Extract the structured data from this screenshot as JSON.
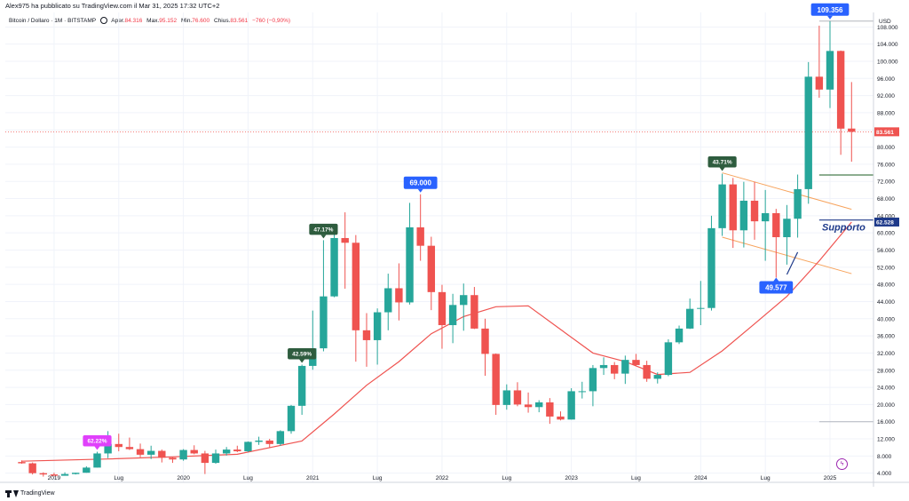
{
  "header": {
    "published_by": "Alex975 ha pubblicato su TradingView.com il Mar 31, 2025 17:32 UTC+2"
  },
  "legend": {
    "symbol": "Bitcoin / Dollaro · 1M · BITSTAMP",
    "open_label": "Aper.",
    "open": "84.316",
    "high_label": "Max.",
    "high": "95.152",
    "low_label": "Min.",
    "low": "76.600",
    "close_label": "Chius.",
    "close": "83.561",
    "change": "−760 (−0,90%)"
  },
  "footer": {
    "brand": "TradingView",
    "logo_icon": "tradingview-logo-icon"
  },
  "colors": {
    "up": "#26a69a",
    "down": "#ef5350",
    "ma": "#ef5350",
    "channel": "#f7a35c",
    "support_line": "#1e3a8a",
    "callout_blue": "#2962ff",
    "callout_green": "#2e5c3e",
    "callout_magenta": "#e040fb",
    "dark_green_line": "#1b5e20"
  },
  "chart_data": {
    "type": "candlestick",
    "currency": "USD",
    "ylim": [
      0,
      112000
    ],
    "yticks": [
      4000,
      8000,
      12000,
      16000,
      20000,
      24000,
      28000,
      32000,
      36000,
      40000,
      44000,
      48000,
      52000,
      56000,
      60000,
      64000,
      68000,
      72000,
      76000,
      80000,
      84000,
      88000,
      92000,
      96000,
      100000,
      104000,
      108000
    ],
    "ytick_labels": [
      "4.000",
      "8.000",
      "12.000",
      "16.000",
      "20.000",
      "24.000",
      "28.000",
      "32.000",
      "36.000",
      "40.000",
      "44.000",
      "48.000",
      "52.000",
      "56.000",
      "60.000",
      "64.000",
      "68.000",
      "72.000",
      "76.000",
      "80.000",
      "84.000",
      "88.000",
      "92.000",
      "96.000",
      "100.000",
      "104.000",
      "108.000"
    ],
    "x_labels": [
      {
        "month": "2019-01",
        "label": "2019"
      },
      {
        "month": "2019-07",
        "label": "Lug"
      },
      {
        "month": "2020-01",
        "label": "2020"
      },
      {
        "month": "2020-07",
        "label": "Lug"
      },
      {
        "month": "2021-01",
        "label": "2021"
      },
      {
        "month": "2021-07",
        "label": "Lug"
      },
      {
        "month": "2022-01",
        "label": "2022"
      },
      {
        "month": "2022-07",
        "label": "Lug"
      },
      {
        "month": "2023-01",
        "label": "2023"
      },
      {
        "month": "2023-07",
        "label": "Lug"
      },
      {
        "month": "2024-01",
        "label": "2024"
      },
      {
        "month": "2024-07",
        "label": "Lug"
      },
      {
        "month": "2025-01",
        "label": "2025"
      }
    ],
    "first_month": "2018-10",
    "candles": [
      {
        "m": "2018-10",
        "o": 6600,
        "h": 7000,
        "l": 6200,
        "c": 6300
      },
      {
        "m": "2018-11",
        "o": 6300,
        "h": 6500,
        "l": 3700,
        "c": 4000
      },
      {
        "m": "2018-12",
        "o": 4000,
        "h": 4200,
        "l": 3200,
        "c": 3700
      },
      {
        "m": "2019-01",
        "o": 3700,
        "h": 4100,
        "l": 3400,
        "c": 3400
      },
      {
        "m": "2019-02",
        "o": 3400,
        "h": 4200,
        "l": 3400,
        "c": 3800
      },
      {
        "m": "2019-03",
        "o": 3800,
        "h": 4100,
        "l": 3700,
        "c": 4100
      },
      {
        "m": "2019-04",
        "o": 4100,
        "h": 5600,
        "l": 4100,
        "c": 5300
      },
      {
        "m": "2019-05",
        "o": 5300,
        "h": 9000,
        "l": 5300,
        "c": 8600
      },
      {
        "m": "2019-06",
        "o": 8600,
        "h": 13800,
        "l": 7500,
        "c": 10800
      },
      {
        "m": "2019-07",
        "o": 10800,
        "h": 13200,
        "l": 9100,
        "c": 10100
      },
      {
        "m": "2019-08",
        "o": 10100,
        "h": 12300,
        "l": 9400,
        "c": 9600
      },
      {
        "m": "2019-09",
        "o": 9600,
        "h": 10900,
        "l": 7700,
        "c": 8300
      },
      {
        "m": "2019-10",
        "o": 8300,
        "h": 10400,
        "l": 7300,
        "c": 9200
      },
      {
        "m": "2019-11",
        "o": 9200,
        "h": 9500,
        "l": 6500,
        "c": 7600
      },
      {
        "m": "2019-12",
        "o": 7600,
        "h": 7700,
        "l": 6400,
        "c": 7200
      },
      {
        "m": "2020-01",
        "o": 7200,
        "h": 9600,
        "l": 6900,
        "c": 9400
      },
      {
        "m": "2020-02",
        "o": 9400,
        "h": 10500,
        "l": 8400,
        "c": 8600
      },
      {
        "m": "2020-03",
        "o": 8600,
        "h": 9200,
        "l": 3800,
        "c": 6400
      },
      {
        "m": "2020-04",
        "o": 6400,
        "h": 9500,
        "l": 6200,
        "c": 8600
      },
      {
        "m": "2020-05",
        "o": 8600,
        "h": 10100,
        "l": 8100,
        "c": 9500
      },
      {
        "m": "2020-06",
        "o": 9500,
        "h": 10400,
        "l": 8900,
        "c": 9100
      },
      {
        "m": "2020-07",
        "o": 9100,
        "h": 11400,
        "l": 8900,
        "c": 11300
      },
      {
        "m": "2020-08",
        "o": 11300,
        "h": 12500,
        "l": 10600,
        "c": 11600
      },
      {
        "m": "2020-09",
        "o": 11600,
        "h": 12000,
        "l": 9900,
        "c": 10800
      },
      {
        "m": "2020-10",
        "o": 10800,
        "h": 14000,
        "l": 10400,
        "c": 13800
      },
      {
        "m": "2020-11",
        "o": 13800,
        "h": 19900,
        "l": 13200,
        "c": 19700
      },
      {
        "m": "2020-12",
        "o": 19700,
        "h": 29300,
        "l": 17600,
        "c": 29000
      },
      {
        "m": "2021-01",
        "o": 29000,
        "h": 41900,
        "l": 28100,
        "c": 33100
      },
      {
        "m": "2021-02",
        "o": 33100,
        "h": 58300,
        "l": 32400,
        "c": 45200
      },
      {
        "m": "2021-03",
        "o": 45200,
        "h": 61800,
        "l": 45000,
        "c": 58800
      },
      {
        "m": "2021-04",
        "o": 58800,
        "h": 64800,
        "l": 47000,
        "c": 57700
      },
      {
        "m": "2021-05",
        "o": 57700,
        "h": 59500,
        "l": 30000,
        "c": 37300
      },
      {
        "m": "2021-06",
        "o": 37300,
        "h": 41300,
        "l": 28800,
        "c": 35000
      },
      {
        "m": "2021-07",
        "o": 35000,
        "h": 42400,
        "l": 29300,
        "c": 41500
      },
      {
        "m": "2021-08",
        "o": 41500,
        "h": 50500,
        "l": 37300,
        "c": 47100
      },
      {
        "m": "2021-09",
        "o": 47100,
        "h": 52900,
        "l": 39600,
        "c": 43800
      },
      {
        "m": "2021-10",
        "o": 43800,
        "h": 67000,
        "l": 43300,
        "c": 61300
      },
      {
        "m": "2021-11",
        "o": 61300,
        "h": 69000,
        "l": 53500,
        "c": 57000
      },
      {
        "m": "2021-12",
        "o": 57000,
        "h": 59100,
        "l": 42000,
        "c": 46200
      },
      {
        "m": "2022-01",
        "o": 46200,
        "h": 47900,
        "l": 33000,
        "c": 38500
      },
      {
        "m": "2022-02",
        "o": 38500,
        "h": 45800,
        "l": 34300,
        "c": 43200
      },
      {
        "m": "2022-03",
        "o": 43200,
        "h": 48200,
        "l": 37200,
        "c": 45500
      },
      {
        "m": "2022-04",
        "o": 45500,
        "h": 47400,
        "l": 37600,
        "c": 37700
      },
      {
        "m": "2022-05",
        "o": 37700,
        "h": 40000,
        "l": 26700,
        "c": 31800
      },
      {
        "m": "2022-06",
        "o": 31800,
        "h": 31900,
        "l": 17600,
        "c": 19900
      },
      {
        "m": "2022-07",
        "o": 19900,
        "h": 24700,
        "l": 18800,
        "c": 23300
      },
      {
        "m": "2022-08",
        "o": 23300,
        "h": 25200,
        "l": 19600,
        "c": 20000
      },
      {
        "m": "2022-09",
        "o": 20000,
        "h": 22800,
        "l": 18100,
        "c": 19400
      },
      {
        "m": "2022-10",
        "o": 19400,
        "h": 21000,
        "l": 18200,
        "c": 20500
      },
      {
        "m": "2022-11",
        "o": 20500,
        "h": 21500,
        "l": 15500,
        "c": 17200
      },
      {
        "m": "2022-12",
        "o": 17200,
        "h": 18400,
        "l": 16300,
        "c": 16500
      },
      {
        "m": "2023-01",
        "o": 16500,
        "h": 23800,
        "l": 16500,
        "c": 23100
      },
      {
        "m": "2023-02",
        "o": 23100,
        "h": 25300,
        "l": 21400,
        "c": 23100
      },
      {
        "m": "2023-03",
        "o": 23100,
        "h": 29200,
        "l": 19600,
        "c": 28500
      },
      {
        "m": "2023-04",
        "o": 28500,
        "h": 31000,
        "l": 26900,
        "c": 29200
      },
      {
        "m": "2023-05",
        "o": 29200,
        "h": 29900,
        "l": 25900,
        "c": 27200
      },
      {
        "m": "2023-06",
        "o": 27200,
        "h": 31400,
        "l": 24800,
        "c": 30400
      },
      {
        "m": "2023-07",
        "o": 30400,
        "h": 31800,
        "l": 28900,
        "c": 29200
      },
      {
        "m": "2023-08",
        "o": 29200,
        "h": 30200,
        "l": 25300,
        "c": 26000
      },
      {
        "m": "2023-09",
        "o": 26000,
        "h": 27500,
        "l": 24900,
        "c": 26900
      },
      {
        "m": "2023-10",
        "o": 26900,
        "h": 35200,
        "l": 26600,
        "c": 34500
      },
      {
        "m": "2023-11",
        "o": 34500,
        "h": 38400,
        "l": 34100,
        "c": 37700
      },
      {
        "m": "2023-12",
        "o": 37700,
        "h": 44700,
        "l": 37600,
        "c": 42300
      },
      {
        "m": "2024-01",
        "o": 42300,
        "h": 48800,
        "l": 38500,
        "c": 42500
      },
      {
        "m": "2024-02",
        "o": 42500,
        "h": 64000,
        "l": 41900,
        "c": 61100
      },
      {
        "m": "2024-03",
        "o": 61100,
        "h": 73800,
        "l": 59300,
        "c": 71300
      },
      {
        "m": "2024-04",
        "o": 71300,
        "h": 72800,
        "l": 56500,
        "c": 60600
      },
      {
        "m": "2024-05",
        "o": 60600,
        "h": 71900,
        "l": 56600,
        "c": 67500
      },
      {
        "m": "2024-06",
        "o": 67500,
        "h": 71900,
        "l": 58400,
        "c": 62700
      },
      {
        "m": "2024-07",
        "o": 62700,
        "h": 70000,
        "l": 53500,
        "c": 64600
      },
      {
        "m": "2024-08",
        "o": 64600,
        "h": 65600,
        "l": 49577,
        "c": 59000
      },
      {
        "m": "2024-09",
        "o": 59000,
        "h": 66500,
        "l": 52600,
        "c": 63300
      },
      {
        "m": "2024-10",
        "o": 63300,
        "h": 73600,
        "l": 58900,
        "c": 70200
      },
      {
        "m": "2024-11",
        "o": 70200,
        "h": 99800,
        "l": 66800,
        "c": 96400
      },
      {
        "m": "2024-12",
        "o": 96400,
        "h": 108300,
        "l": 91500,
        "c": 93400
      },
      {
        "m": "2025-01",
        "o": 93400,
        "h": 109356,
        "l": 89100,
        "c": 102400
      },
      {
        "m": "2025-02",
        "o": 102400,
        "h": 102500,
        "l": 78200,
        "c": 84300
      },
      {
        "m": "2025-03",
        "o": 84316,
        "h": 95152,
        "l": 76600,
        "c": 83561
      }
    ],
    "moving_average": {
      "color_key": "ma",
      "points": [
        {
          "m": "2018-10",
          "v": 6800
        },
        {
          "m": "2019-06",
          "v": 7300
        },
        {
          "m": "2019-12",
          "v": 7800
        },
        {
          "m": "2020-06",
          "v": 8400
        },
        {
          "m": "2020-12",
          "v": 11500
        },
        {
          "m": "2021-03",
          "v": 17800
        },
        {
          "m": "2021-06",
          "v": 24500
        },
        {
          "m": "2021-09",
          "v": 30000
        },
        {
          "m": "2021-12",
          "v": 36500
        },
        {
          "m": "2022-03",
          "v": 40500
        },
        {
          "m": "2022-06",
          "v": 42800
        },
        {
          "m": "2022-09",
          "v": 43000
        },
        {
          "m": "2022-12",
          "v": 37500
        },
        {
          "m": "2023-03",
          "v": 32000
        },
        {
          "m": "2023-06",
          "v": 30000
        },
        {
          "m": "2023-09",
          "v": 27000
        },
        {
          "m": "2023-12",
          "v": 27500
        },
        {
          "m": "2024-03",
          "v": 32500
        },
        {
          "m": "2024-06",
          "v": 38800
        },
        {
          "m": "2024-09",
          "v": 45200
        },
        {
          "m": "2024-12",
          "v": 53500
        },
        {
          "m": "2025-03",
          "v": 62528
        }
      ]
    },
    "channel_lines": [
      {
        "from": {
          "m": "2024-03",
          "v": 74000
        },
        "to": {
          "m": "2025-03",
          "v": 65500
        }
      },
      {
        "from": {
          "m": "2024-03",
          "v": 59000
        },
        "to": {
          "m": "2025-03",
          "v": 50500
        }
      }
    ],
    "support_line": {
      "from": {
        "m": "2024-12",
        "v": 63000
      },
      "to": {
        "m": "2025-05",
        "v": 63000
      }
    },
    "support_diagonal": {
      "from": {
        "m": "2024-09",
        "v": 50300
      },
      "to": {
        "m": "2024-10",
        "v": 55500
      }
    },
    "green_level_line": {
      "from": {
        "m": "2024-12",
        "v": 73500
      },
      "to": {
        "m": "2025-05",
        "v": 73500
      }
    },
    "grey_level_line": {
      "from": {
        "m": "2024-12",
        "v": 16000
      },
      "to": {
        "m": "2025-05",
        "v": 16000
      }
    },
    "top_level_line": {
      "from": {
        "m": "2024-12",
        "v": 109356
      },
      "to": {
        "m": "2025-05",
        "v": 109356
      }
    },
    "current_price_line": {
      "v": 83561
    },
    "support_label": "Supporto",
    "price_badges": [
      {
        "value": 83561,
        "label": "83.561",
        "color_key": "down"
      },
      {
        "value": 62528,
        "label": "62.528",
        "color_key": "support_line"
      }
    ],
    "callouts": [
      {
        "text": "109.356",
        "m": "2025-01",
        "v": 109356,
        "color_key": "callout_blue",
        "pos": "above"
      },
      {
        "text": "69.000",
        "m": "2021-11",
        "v": 69000,
        "color_key": "callout_blue",
        "pos": "above"
      },
      {
        "text": "49.577",
        "m": "2024-08",
        "v": 49577,
        "color_key": "callout_blue",
        "pos": "below"
      },
      {
        "text": "43.71%",
        "m": "2024-03",
        "v": 74000,
        "color_key": "callout_green",
        "pos": "above"
      },
      {
        "text": "47.17%",
        "m": "2021-02",
        "v": 58300,
        "color_key": "callout_green",
        "pos": "above"
      },
      {
        "text": "42.59%",
        "m": "2020-12",
        "v": 29300,
        "color_key": "callout_green",
        "pos": "above"
      },
      {
        "text": "62.22%",
        "m": "2019-05",
        "v": 9000,
        "color_key": "callout_magenta",
        "pos": "above"
      }
    ]
  }
}
